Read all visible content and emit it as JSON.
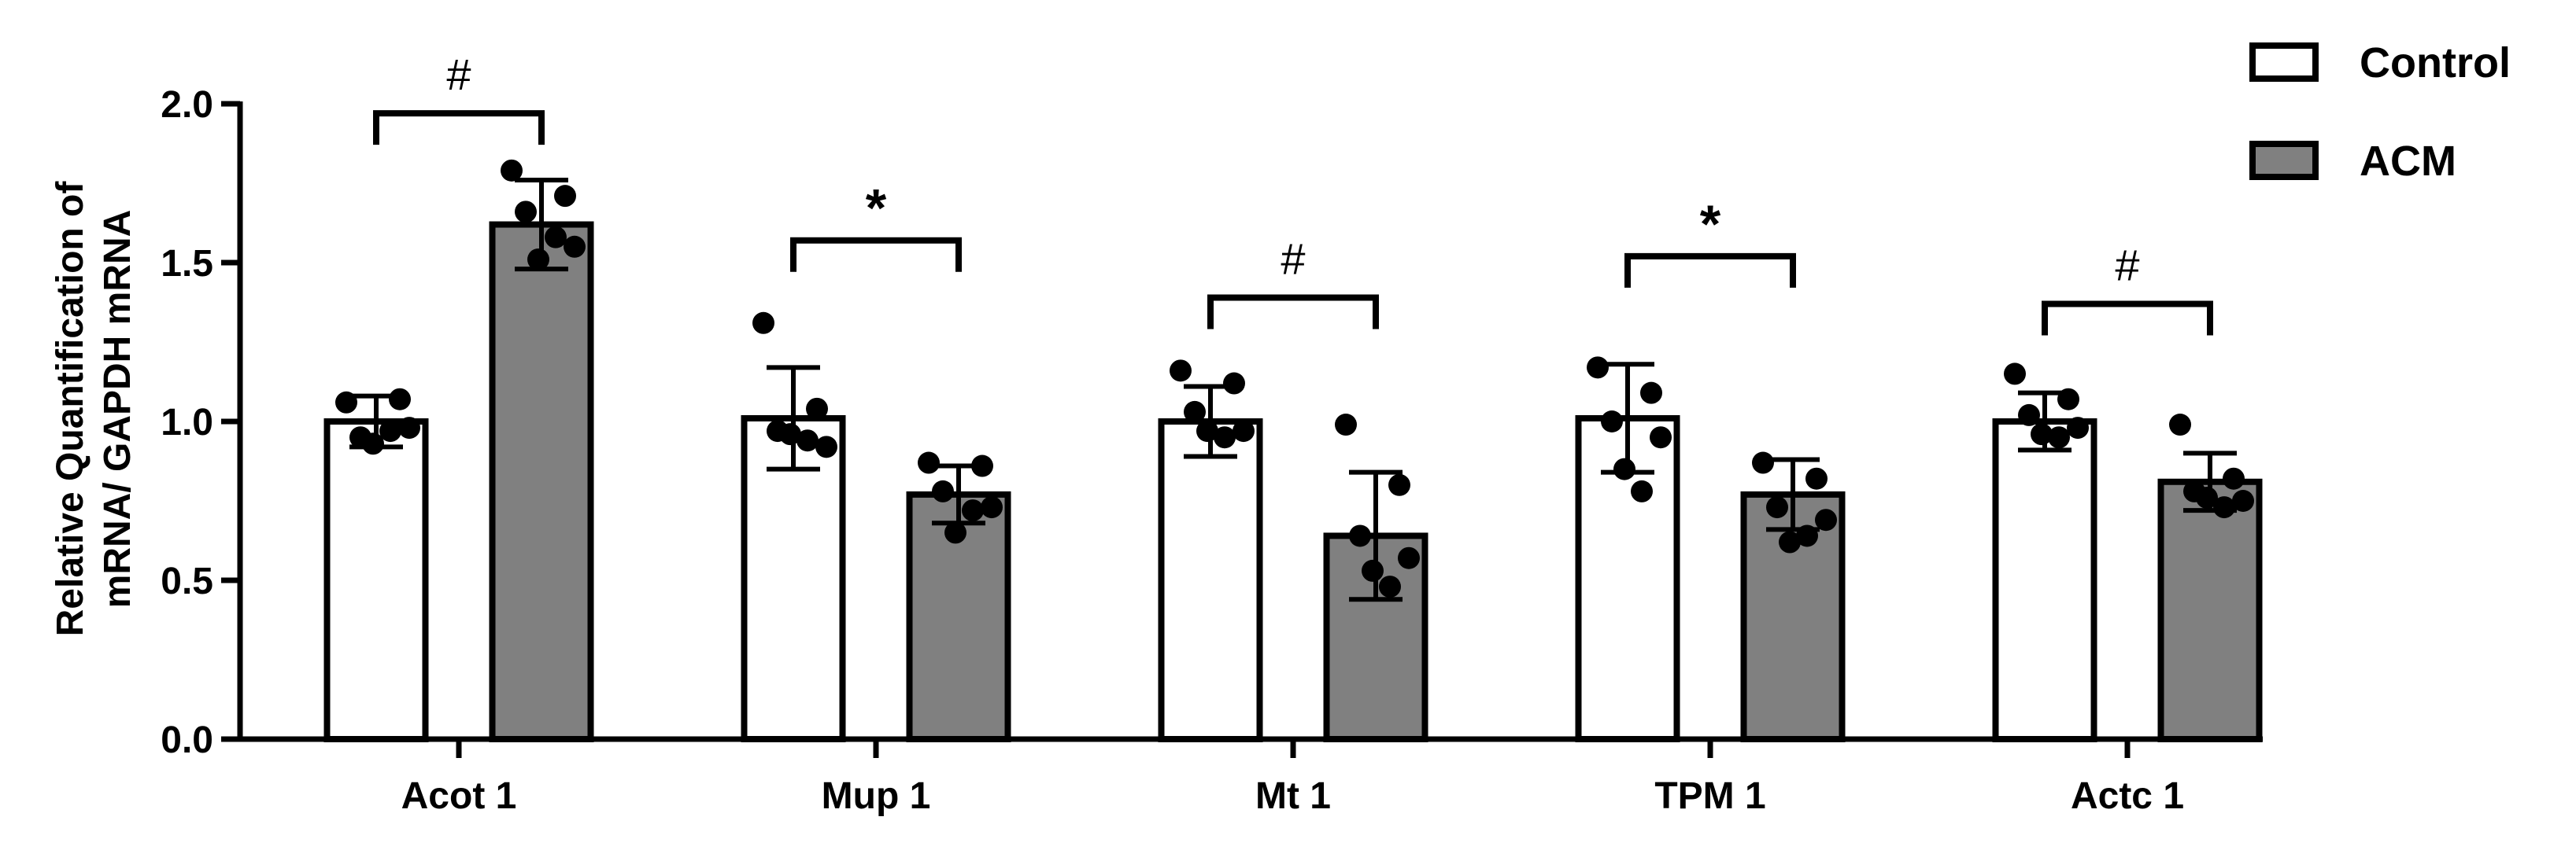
{
  "chart_data": {
    "type": "bar",
    "title": "",
    "xlabel": "",
    "ylabel_lines": [
      "Relative Quantification of",
      "mRNA/ GAPDH mRNA"
    ],
    "ylim": [
      0,
      2.0
    ],
    "yticks": [
      "0.0",
      "0.5",
      "1.0",
      "1.5",
      "2.0"
    ],
    "ytick_values": [
      0,
      0.5,
      1.0,
      1.5,
      2.0
    ],
    "categories": [
      "Acot 1",
      "Mup 1",
      "Mt 1",
      "TPM 1",
      "Actc 1"
    ],
    "series": [
      {
        "name": "Control",
        "color": "#ffffff",
        "values": [
          1.0,
          1.01,
          1.0,
          1.01,
          1.0
        ],
        "errors": [
          0.08,
          0.16,
          0.11,
          0.17,
          0.09
        ],
        "points": [
          [
            1.06,
            1.07,
            0.95,
            0.98,
            0.93,
            0.97
          ],
          [
            1.31,
            1.04,
            0.97,
            0.92,
            0.96,
            0.94
          ],
          [
            1.16,
            1.12,
            1.03,
            0.97,
            0.97,
            0.95
          ],
          [
            1.17,
            1.09,
            1.0,
            0.95,
            0.85,
            0.78
          ],
          [
            1.15,
            1.07,
            1.02,
            0.98,
            0.96,
            0.95
          ]
        ]
      },
      {
        "name": "ACM",
        "color": "#808080",
        "values": [
          1.62,
          0.77,
          0.64,
          0.77,
          0.81
        ],
        "errors": [
          0.14,
          0.09,
          0.2,
          0.11,
          0.09
        ],
        "points": [
          [
            1.79,
            1.71,
            1.66,
            1.55,
            1.51,
            1.58
          ],
          [
            0.87,
            0.86,
            0.78,
            0.73,
            0.65,
            0.72
          ],
          [
            0.99,
            0.8,
            0.64,
            0.57,
            0.53,
            0.48
          ],
          [
            0.87,
            0.82,
            0.73,
            0.69,
            0.62,
            0.64
          ],
          [
            0.99,
            0.82,
            0.78,
            0.75,
            0.76,
            0.73
          ]
        ]
      }
    ],
    "significance": [
      "#",
      "*",
      "#",
      "*",
      "#"
    ],
    "legend": {
      "position": "top-right",
      "entries": [
        "Control",
        "ACM"
      ]
    },
    "grid": false
  }
}
